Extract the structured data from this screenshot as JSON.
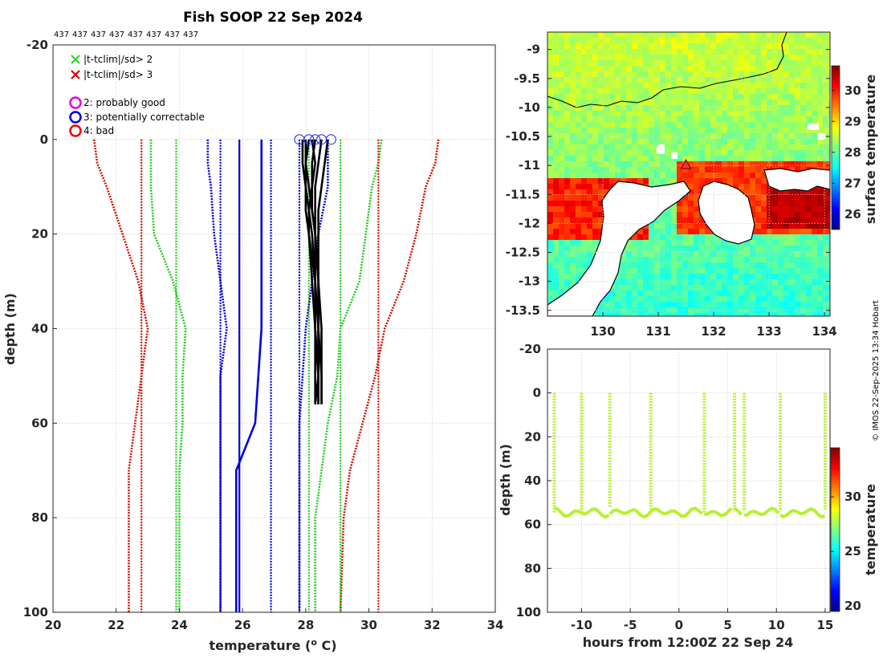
{
  "chart_data": [
    {
      "id": "profile",
      "type": "line",
      "title": "Fish SOOP 22 Sep 2024",
      "profile_ids": [
        "437",
        "437",
        "437",
        "437",
        "437",
        "437",
        "437",
        "437"
      ],
      "xlabel": "temperature (",
      "xlabel_sup": "o",
      "xlabel_end": " C)",
      "ylabel": "depth (m)",
      "xlim": [
        20,
        34
      ],
      "ylim": [
        -20,
        100
      ],
      "xticks": [
        20,
        22,
        24,
        26,
        28,
        30,
        32,
        34
      ],
      "yticks": [
        -20,
        0,
        20,
        40,
        60,
        80,
        100
      ],
      "legend": [
        {
          "marker": "x",
          "color": "#22dd22",
          "label": "|t-tclim|/sd> 2"
        },
        {
          "marker": "x",
          "color": "#dd0000",
          "label": "|t-tclim|/sd> 3"
        },
        {
          "marker": "o",
          "color": "#e000e0",
          "label": "2: probably good"
        },
        {
          "marker": "o",
          "color": "#0000dd",
          "label": "3: potentially correctable"
        },
        {
          "marker": "o",
          "color": "#ee0000",
          "label": "4: bad"
        }
      ],
      "climatology": {
        "depth": [
          0,
          5,
          10,
          20,
          30,
          40,
          50,
          60,
          70,
          80,
          100
        ],
        "mean": [
          26.6,
          26.6,
          26.6,
          26.6,
          26.6,
          26.6,
          26.5,
          26.4,
          25.8,
          25.8,
          25.8
        ],
        "sd1_hi": [
          28.7,
          28.7,
          28.7,
          28.4,
          28.2,
          28.0,
          27.9,
          27.8,
          27.8,
          27.8,
          27.8
        ],
        "sd1_lo": [
          24.9,
          24.9,
          25.0,
          25.1,
          25.3,
          25.5,
          25.3,
          25.3,
          25.3,
          25.3,
          25.3
        ],
        "sd2_hi": [
          30.4,
          30.3,
          30.1,
          29.9,
          29.7,
          29.1,
          29.0,
          28.7,
          28.5,
          28.3,
          28.3
        ],
        "sd2_lo": [
          23.1,
          23.1,
          23.1,
          23.2,
          23.8,
          24.2,
          24.1,
          24.1,
          24.0,
          24.0,
          24.0
        ],
        "sd3_hi": [
          32.2,
          32.1,
          31.8,
          31.5,
          31.1,
          30.5,
          30.2,
          29.8,
          29.4,
          29.2,
          29.1
        ],
        "sd3_lo": [
          21.3,
          21.4,
          21.7,
          22.2,
          22.7,
          23.0,
          22.8,
          22.6,
          22.4,
          22.4,
          22.4
        ],
        "flat_lines": [
          22.8,
          23.9,
          25.3,
          25.9,
          26.9,
          27.8,
          28.1,
          29.1,
          30.3
        ]
      },
      "profiles": [
        {
          "depth": [
            0,
            5,
            10,
            15,
            20,
            30,
            40,
            50,
            56
          ],
          "temp": [
            27.9,
            27.9,
            28.0,
            28.0,
            28.1,
            28.2,
            28.3,
            28.3,
            28.3
          ]
        },
        {
          "depth": [
            0,
            5,
            10,
            15,
            20,
            30,
            40,
            50,
            56
          ],
          "temp": [
            28.1,
            28.0,
            28.0,
            28.1,
            28.1,
            28.3,
            28.3,
            28.4,
            28.4
          ]
        },
        {
          "depth": [
            0,
            5,
            10,
            15,
            20,
            30,
            40,
            50,
            56
          ],
          "temp": [
            28.3,
            28.2,
            28.2,
            28.1,
            28.2,
            28.3,
            28.4,
            28.4,
            28.4
          ]
        },
        {
          "depth": [
            0,
            5,
            10,
            15,
            20,
            30,
            40,
            50,
            56
          ],
          "temp": [
            28.5,
            28.4,
            28.3,
            28.3,
            28.3,
            28.4,
            28.4,
            28.5,
            28.5
          ]
        },
        {
          "depth": [
            0,
            5,
            10,
            15,
            20,
            30,
            40,
            50,
            56
          ],
          "temp": [
            28.7,
            28.6,
            28.5,
            28.4,
            28.4,
            28.4,
            28.5,
            28.5,
            28.5
          ]
        },
        {
          "depth": [
            0,
            5,
            10,
            15,
            20,
            30,
            40,
            50,
            56
          ],
          "temp": [
            28.0,
            28.0,
            28.1,
            28.2,
            28.3,
            28.3,
            28.3,
            28.4,
            28.3
          ]
        },
        {
          "depth": [
            0,
            5,
            10,
            15,
            20,
            30,
            40,
            50,
            56
          ],
          "temp": [
            28.2,
            28.3,
            28.2,
            28.2,
            28.3,
            28.4,
            28.4,
            28.4,
            28.4
          ]
        }
      ],
      "surface_circles": [
        27.8,
        28.1,
        28.3,
        28.5,
        28.8
      ]
    },
    {
      "id": "map",
      "type": "heatmap",
      "xlim": [
        129.0,
        134.1
      ],
      "ylim": [
        -13.6,
        -8.7
      ],
      "xticks": [
        130,
        131,
        132,
        133,
        134
      ],
      "yticks": [
        -9,
        -9.5,
        -10,
        -10.5,
        -11,
        -11.5,
        -12,
        -12.5,
        -13,
        -13.5
      ],
      "xtick_labels": [
        "130",
        "131",
        "132",
        "133",
        "134"
      ],
      "ytick_labels": [
        "-9",
        "-9.5",
        "-10",
        "-10.5",
        "-11",
        "-11.5",
        "-12",
        "-12.5",
        "-13",
        "-13.5"
      ],
      "colorbar_label": "surface temperature",
      "colorbar_ticks": [
        26,
        27,
        28,
        29,
        30
      ],
      "colorbar_range": [
        25.5,
        30.8
      ],
      "marker": {
        "lon": 131.5,
        "lat": -11.0
      }
    },
    {
      "id": "timeseries",
      "type": "scatter",
      "xlabel": "hours from 12:00Z 22 Sep 24",
      "ylabel": "depth (m)",
      "xlim": [
        -13.5,
        15.5
      ],
      "ylim": [
        -20,
        100
      ],
      "xticks": [
        -10,
        -5,
        0,
        5,
        10,
        15
      ],
      "yticks": [
        -20,
        0,
        20,
        40,
        60,
        80,
        100
      ],
      "cast_hours": [
        -12.8,
        -10.0,
        -7.1,
        -2.9,
        2.6,
        5.7,
        6.7,
        10.4,
        15.0
      ],
      "bottom_depth": [
        55,
        55,
        52,
        53,
        55,
        54,
        54,
        54,
        53
      ],
      "colorbar_label": "temperature",
      "colorbar_ticks": [
        20,
        25,
        30
      ],
      "colorbar_range": [
        19.5,
        34.5
      ]
    }
  ],
  "credit": "© IMOS 22-Sep-2025 13:34 Hobart"
}
